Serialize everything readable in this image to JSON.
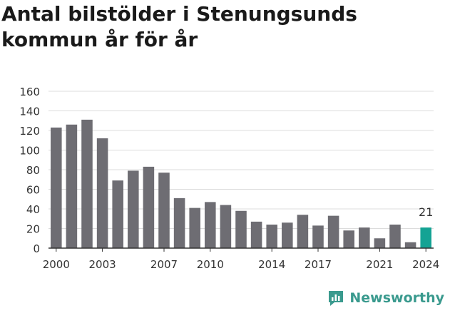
{
  "brand": {
    "name": "Newsworthy",
    "color": "#3a9a8e"
  },
  "colors": {
    "bar": "#6e6d73",
    "highlight": "#14a394",
    "grid": "#dcdcdc"
  },
  "chart_data": {
    "type": "bar",
    "title": "Antal bilstölder i Stenungsunds kommun år för år",
    "categories": [
      "2000",
      "2001",
      "2002",
      "2003",
      "2004",
      "2005",
      "2006",
      "2007",
      "2008",
      "2009",
      "2010",
      "2011",
      "2012",
      "2013",
      "2014",
      "2015",
      "2016",
      "2017",
      "2018",
      "2019",
      "2020",
      "2021",
      "2022",
      "2023",
      "2024"
    ],
    "values": [
      123,
      126,
      131,
      112,
      69,
      79,
      83,
      77,
      51,
      41,
      47,
      44,
      38,
      27,
      24,
      26,
      34,
      23,
      33,
      18,
      21,
      10,
      24,
      6,
      21
    ],
    "x_tick_labels": [
      "2000",
      "2003",
      "2007",
      "2010",
      "2014",
      "2017",
      "2021",
      "2024"
    ],
    "ylim": [
      0,
      160
    ],
    "y_ticks": [
      0,
      20,
      40,
      60,
      80,
      100,
      120,
      140,
      160
    ],
    "grid": true,
    "highlight_category": "2024",
    "annotations": [
      {
        "category": "2024",
        "text": "21"
      }
    ],
    "xlabel": "",
    "ylabel": ""
  }
}
